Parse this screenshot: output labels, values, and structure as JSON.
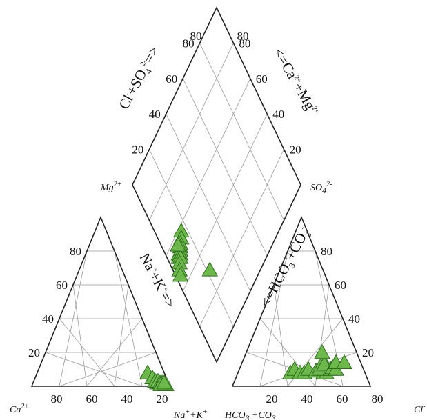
{
  "chart_data": {
    "type": "scatter",
    "diagram": "piper",
    "marker": {
      "shape": "triangle",
      "fill": "#6cb84a",
      "stroke": "#2f6e1f"
    },
    "cation_triangle": {
      "corner_labels": {
        "left": "Ca2+",
        "right": "Na++K+",
        "top": "Mg2+"
      },
      "bottom_ticks": [
        "80",
        "60",
        "40",
        "20"
      ],
      "left_ticks": [
        "20",
        "40",
        "60",
        "80"
      ],
      "side_title": "Na++K+=>",
      "points": [
        {
          "ca": 12,
          "mg": 8,
          "nak": 80
        },
        {
          "ca": 10,
          "mg": 5,
          "nak": 85
        },
        {
          "ca": 9,
          "mg": 3,
          "nak": 88
        },
        {
          "ca": 8,
          "mg": 2,
          "nak": 90
        },
        {
          "ca": 7,
          "mg": 3,
          "nak": 90
        },
        {
          "ca": 6,
          "mg": 2,
          "nak": 92
        },
        {
          "ca": 5,
          "mg": 2,
          "nak": 93
        },
        {
          "ca": 5,
          "mg": 1,
          "nak": 94
        },
        {
          "ca": 4,
          "mg": 2,
          "nak": 94
        },
        {
          "ca": 3,
          "mg": 1,
          "nak": 96
        },
        {
          "ca": 4,
          "mg": 1,
          "nak": 95
        },
        {
          "ca": 2,
          "mg": 1,
          "nak": 97
        },
        {
          "ca": 6,
          "mg": 1,
          "nak": 93
        },
        {
          "ca": 3,
          "mg": 2,
          "nak": 95
        }
      ]
    },
    "anion_triangle": {
      "corner_labels": {
        "left": "HCO3-+CO3-",
        "right": "Cl-",
        "top": "SO42-"
      },
      "bottom_ticks": [
        "20",
        "40",
        "60",
        "80"
      ],
      "right_ticks": [
        "20",
        "40",
        "60",
        "80"
      ],
      "side_title": "<=HCO3-+CO3-",
      "points": [
        {
          "hco3": 54,
          "cl": 38,
          "so4": 8
        },
        {
          "hco3": 50,
          "cl": 40,
          "so4": 10
        },
        {
          "hco3": 47,
          "cl": 45,
          "so4": 8
        },
        {
          "hco3": 44,
          "cl": 48,
          "so4": 8
        },
        {
          "hco3": 40,
          "cl": 50,
          "so4": 10
        },
        {
          "hco3": 35,
          "cl": 56,
          "so4": 9
        },
        {
          "hco3": 30,
          "cl": 62,
          "so4": 8
        },
        {
          "hco3": 28,
          "cl": 64,
          "so4": 8
        },
        {
          "hco3": 32,
          "cl": 58,
          "so4": 10
        },
        {
          "hco3": 26,
          "cl": 62,
          "so4": 12
        },
        {
          "hco3": 24,
          "cl": 66,
          "so4": 10
        },
        {
          "hco3": 30,
          "cl": 58,
          "so4": 12
        },
        {
          "hco3": 27,
          "cl": 60,
          "so4": 13
        },
        {
          "hco3": 22,
          "cl": 67,
          "so4": 11
        },
        {
          "hco3": 20,
          "cl": 70,
          "so4": 10
        },
        {
          "hco3": 18,
          "cl": 68,
          "so4": 14
        },
        {
          "hco3": 25,
          "cl": 55,
          "so4": 20
        },
        {
          "hco3": 12,
          "cl": 74,
          "so4": 14
        }
      ]
    },
    "diamond": {
      "corner_labels": {
        "left": "Mg2+",
        "right": "SO42-"
      },
      "left_ticks": [
        "20",
        "40",
        "60",
        "80"
      ],
      "right_ticks": [
        "20",
        "40",
        "60",
        "80"
      ],
      "left_inner_ticks": [
        "80"
      ],
      "right_inner_ticks": [
        "80"
      ],
      "left_title": "Cl-+SO42-=>",
      "right_title": "<=Ca2++Mg2+",
      "points": [
        {
          "clso4": 30,
          "camg": 22
        },
        {
          "clso4": 58,
          "camg": 16
        },
        {
          "clso4": 56,
          "camg": 14
        },
        {
          "clso4": 55,
          "camg": 12
        },
        {
          "clso4": 54,
          "camg": 11
        },
        {
          "clso4": 53,
          "camg": 10
        },
        {
          "clso4": 52,
          "camg": 9
        },
        {
          "clso4": 53,
          "camg": 8
        },
        {
          "clso4": 52,
          "camg": 7
        },
        {
          "clso4": 51,
          "camg": 8
        },
        {
          "clso4": 56,
          "camg": 10
        },
        {
          "clso4": 50,
          "camg": 6
        },
        {
          "clso4": 48,
          "camg": 4
        },
        {
          "clso4": 46,
          "camg": 3
        }
      ]
    }
  }
}
